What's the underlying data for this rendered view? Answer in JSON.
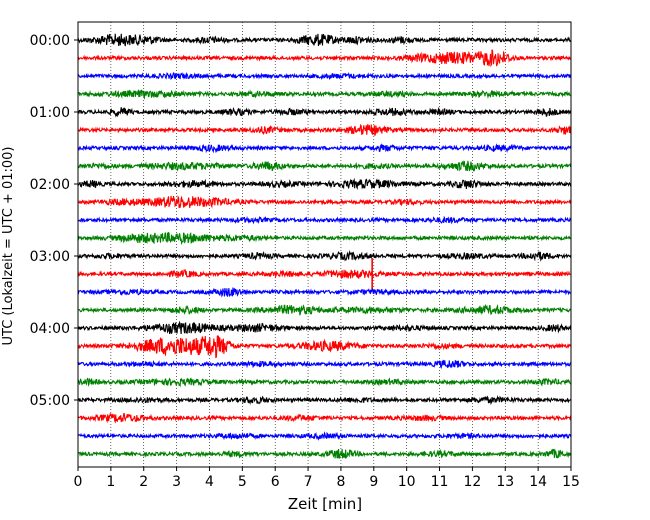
{
  "chart_data": {
    "type": "line",
    "title": "",
    "xlabel": "Zeit  [min]",
    "ylabel": "UTC (Lokalzeit = UTC + 01:00)",
    "xlim": [
      0,
      15
    ],
    "x_ticks": [
      "0",
      "1",
      "2",
      "3",
      "4",
      "5",
      "6",
      "7",
      "8",
      "9",
      "10",
      "11",
      "12",
      "13",
      "14",
      "15"
    ],
    "y_ticks": [
      "00:00",
      "01:00",
      "02:00",
      "03:00",
      "04:00",
      "05:00"
    ],
    "grid": "vertical dotted lines at each minute",
    "legend": "none",
    "color_cycle": [
      "#000000",
      "#ff0000",
      "#0000ff",
      "#008000"
    ],
    "traces_per_hour": 4,
    "minutes_per_trace": 15,
    "series": [
      {
        "start": "00:00",
        "color": "#000000",
        "bursts": [
          [
            1.2,
            2.0,
            0.5
          ],
          [
            7.3,
            2.0,
            0.4
          ],
          [
            2.1,
            1.0,
            0.3
          ],
          [
            4.0,
            0.9,
            0.3
          ],
          [
            8.5,
            1.0,
            0.3
          ],
          [
            9.8,
            1.0,
            0.25
          ]
        ]
      },
      {
        "start": "00:15",
        "color": "#ff0000",
        "bursts": [
          [
            11.1,
            1.6,
            0.4
          ],
          [
            12.0,
            1.6,
            0.5
          ],
          [
            12.7,
            2.3,
            0.3
          ],
          [
            10.3,
            0.8,
            0.3
          ]
        ]
      },
      {
        "start": "00:30",
        "color": "#0000ff",
        "bursts": [
          [
            3.0,
            0.6,
            0.4
          ],
          [
            8.0,
            0.5,
            0.5
          ]
        ]
      },
      {
        "start": "00:45",
        "color": "#008000",
        "bursts": [
          [
            2.0,
            0.9,
            0.8
          ],
          [
            5.5,
            0.6,
            0.4
          ],
          [
            12.5,
            0.7,
            0.5
          ],
          [
            9.5,
            0.6,
            0.4
          ]
        ]
      },
      {
        "start": "01:00",
        "color": "#000000",
        "bursts": [
          [
            1.3,
            1.3,
            0.2
          ],
          [
            4.8,
            0.9,
            0.3
          ],
          [
            9.5,
            1.0,
            0.4
          ],
          [
            14.3,
            1.2,
            0.2
          ],
          [
            6.5,
            0.8,
            0.3
          ],
          [
            11.0,
            0.7,
            0.3
          ]
        ]
      },
      {
        "start": "01:15",
        "color": "#ff0000",
        "bursts": [
          [
            8.8,
            1.7,
            0.4
          ],
          [
            5.7,
            0.9,
            0.3
          ],
          [
            14.8,
            1.2,
            0.2
          ]
        ]
      },
      {
        "start": "01:30",
        "color": "#0000ff",
        "bursts": [
          [
            4.1,
            0.8,
            0.4
          ],
          [
            9.3,
            0.8,
            0.3
          ],
          [
            12.8,
            0.7,
            0.4
          ]
        ]
      },
      {
        "start": "01:45",
        "color": "#008000",
        "bursts": [
          [
            5.8,
            1.4,
            0.3
          ],
          [
            11.8,
            1.5,
            0.4
          ],
          [
            3.2,
            1.0,
            0.8
          ],
          [
            0.6,
            0.6,
            0.3
          ],
          [
            9.0,
            0.6,
            0.4
          ]
        ]
      },
      {
        "start": "02:00",
        "color": "#000000",
        "bursts": [
          [
            8.8,
            1.3,
            0.7
          ],
          [
            11.8,
            1.4,
            0.3
          ],
          [
            0.4,
            1.0,
            0.2
          ],
          [
            3.5,
            0.9,
            0.5
          ],
          [
            6.2,
            0.7,
            0.4
          ]
        ]
      },
      {
        "start": "02:15",
        "color": "#ff0000",
        "bursts": [
          [
            3.0,
            2.0,
            0.5
          ],
          [
            4.1,
            1.1,
            0.5
          ],
          [
            1.5,
            0.9,
            0.5
          ],
          [
            10.0,
            0.6,
            0.3
          ]
        ]
      },
      {
        "start": "02:30",
        "color": "#0000ff",
        "bursts": [
          [
            5.2,
            0.5,
            0.4
          ],
          [
            11.2,
            0.6,
            0.4
          ]
        ]
      },
      {
        "start": "02:45",
        "color": "#008000",
        "bursts": [
          [
            3.0,
            1.6,
            0.9
          ],
          [
            1.7,
            0.8,
            0.4
          ],
          [
            5.0,
            0.6,
            0.4
          ]
        ]
      },
      {
        "start": "03:00",
        "color": "#000000",
        "bursts": [
          [
            8.2,
            1.0,
            0.5
          ],
          [
            14.0,
            1.2,
            0.3
          ],
          [
            5.5,
            0.8,
            0.3
          ],
          [
            1.0,
            0.6,
            0.3
          ],
          [
            11.8,
            0.8,
            0.4
          ]
        ]
      },
      {
        "start": "03:15",
        "color": "#ff0000",
        "bursts": [
          [
            8.3,
            1.2,
            0.6
          ],
          [
            6.3,
            0.6,
            0.4
          ],
          [
            3.2,
            1.0,
            0.3
          ]
        ],
        "spike_minute": 8.95
      },
      {
        "start": "03:30",
        "color": "#0000ff",
        "bursts": [
          [
            4.6,
            1.4,
            0.3
          ],
          [
            1.5,
            0.6,
            0.4
          ],
          [
            9.0,
            0.5,
            0.4
          ]
        ]
      },
      {
        "start": "03:45",
        "color": "#008000",
        "bursts": [
          [
            6.5,
            1.4,
            0.6
          ],
          [
            12.5,
            1.2,
            0.6
          ],
          [
            3.3,
            1.1,
            0.3
          ],
          [
            8.8,
            0.8,
            0.7
          ]
        ]
      },
      {
        "start": "04:00",
        "color": "#000000",
        "bursts": [
          [
            3.2,
            1.9,
            0.7
          ],
          [
            5.5,
            1.2,
            0.5
          ],
          [
            14.5,
            1.0,
            0.2
          ],
          [
            10.0,
            0.6,
            0.4
          ]
        ]
      },
      {
        "start": "04:15",
        "color": "#ff0000",
        "bursts": [
          [
            2.6,
            2.8,
            0.6
          ],
          [
            4.2,
            3.1,
            0.3
          ],
          [
            3.6,
            2.0,
            0.5
          ],
          [
            7.6,
            1.6,
            0.6
          ],
          [
            11.0,
            0.5,
            0.5
          ]
        ]
      },
      {
        "start": "04:30",
        "color": "#0000ff",
        "bursts": [
          [
            11.3,
            1.2,
            0.3
          ],
          [
            5.5,
            0.6,
            0.4
          ],
          [
            2.0,
            0.5,
            0.4
          ]
        ]
      },
      {
        "start": "04:45",
        "color": "#008000",
        "bursts": [
          [
            0.3,
            0.9,
            0.2
          ],
          [
            3.0,
            0.8,
            0.8
          ],
          [
            14.3,
            0.8,
            0.3
          ],
          [
            9.5,
            0.6,
            0.4
          ]
        ]
      },
      {
        "start": "05:00",
        "color": "#000000",
        "bursts": [
          [
            5.4,
            0.9,
            0.3
          ],
          [
            12.5,
            0.7,
            0.4
          ],
          [
            2.0,
            0.6,
            0.4
          ],
          [
            8.5,
            0.6,
            0.3
          ]
        ]
      },
      {
        "start": "05:15",
        "color": "#ff0000",
        "bursts": [
          [
            1.3,
            1.3,
            0.5
          ],
          [
            6.8,
            0.7,
            0.4
          ],
          [
            10.5,
            0.6,
            0.5
          ]
        ]
      },
      {
        "start": "05:30",
        "color": "#0000ff",
        "bursts": [
          [
            4.8,
            0.7,
            0.4
          ],
          [
            7.5,
            0.6,
            0.4
          ],
          [
            11.7,
            0.5,
            0.4
          ]
        ]
      },
      {
        "start": "05:45",
        "color": "#008000",
        "bursts": [
          [
            8.0,
            1.5,
            0.3
          ],
          [
            14.5,
            1.3,
            0.2
          ],
          [
            4.8,
            0.6,
            0.3
          ],
          [
            11.0,
            0.6,
            0.4
          ]
        ]
      }
    ]
  }
}
